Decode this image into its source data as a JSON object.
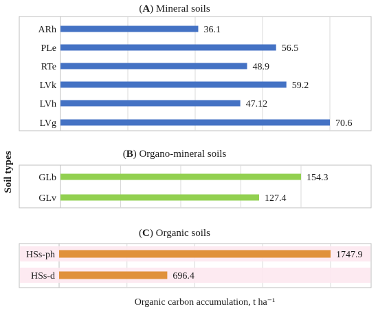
{
  "chart_data": {
    "type": "bar",
    "orientation": "horizontal",
    "ylabel": "Soil types",
    "xlabel": "Organic carbon accumulation, t ha⁻¹",
    "grid": true,
    "panels": [
      {
        "letter": "A",
        "title": "Mineral soils",
        "categories": [
          "ARh",
          "PLe",
          "RTe",
          "LVk",
          "LVh",
          "LVg"
        ],
        "values": [
          36.1,
          56.5,
          48.9,
          59.2,
          47.12,
          70.6
        ],
        "value_labels": [
          "36.1",
          "56.5",
          "48.9",
          "59.2",
          "47.12",
          "70.6"
        ],
        "xlim": [
          0,
          70.6
        ],
        "color": "#4472C4"
      },
      {
        "letter": "B",
        "title": "Organo-mineral soils",
        "categories": [
          "GLb",
          "GLv"
        ],
        "values": [
          154.3,
          127.4
        ],
        "value_labels": [
          "154.3",
          "127.4"
        ],
        "xlim": [
          0,
          154.3
        ],
        "color": "#92D050"
      },
      {
        "letter": "C",
        "title": "Organic soils",
        "categories": [
          "HSs-ph",
          "HSs-d"
        ],
        "values": [
          1747.9,
          696.4
        ],
        "value_labels": [
          "1747.9",
          "696.4"
        ],
        "xlim": [
          0,
          1747.9
        ],
        "color": "#E0913B"
      }
    ]
  }
}
